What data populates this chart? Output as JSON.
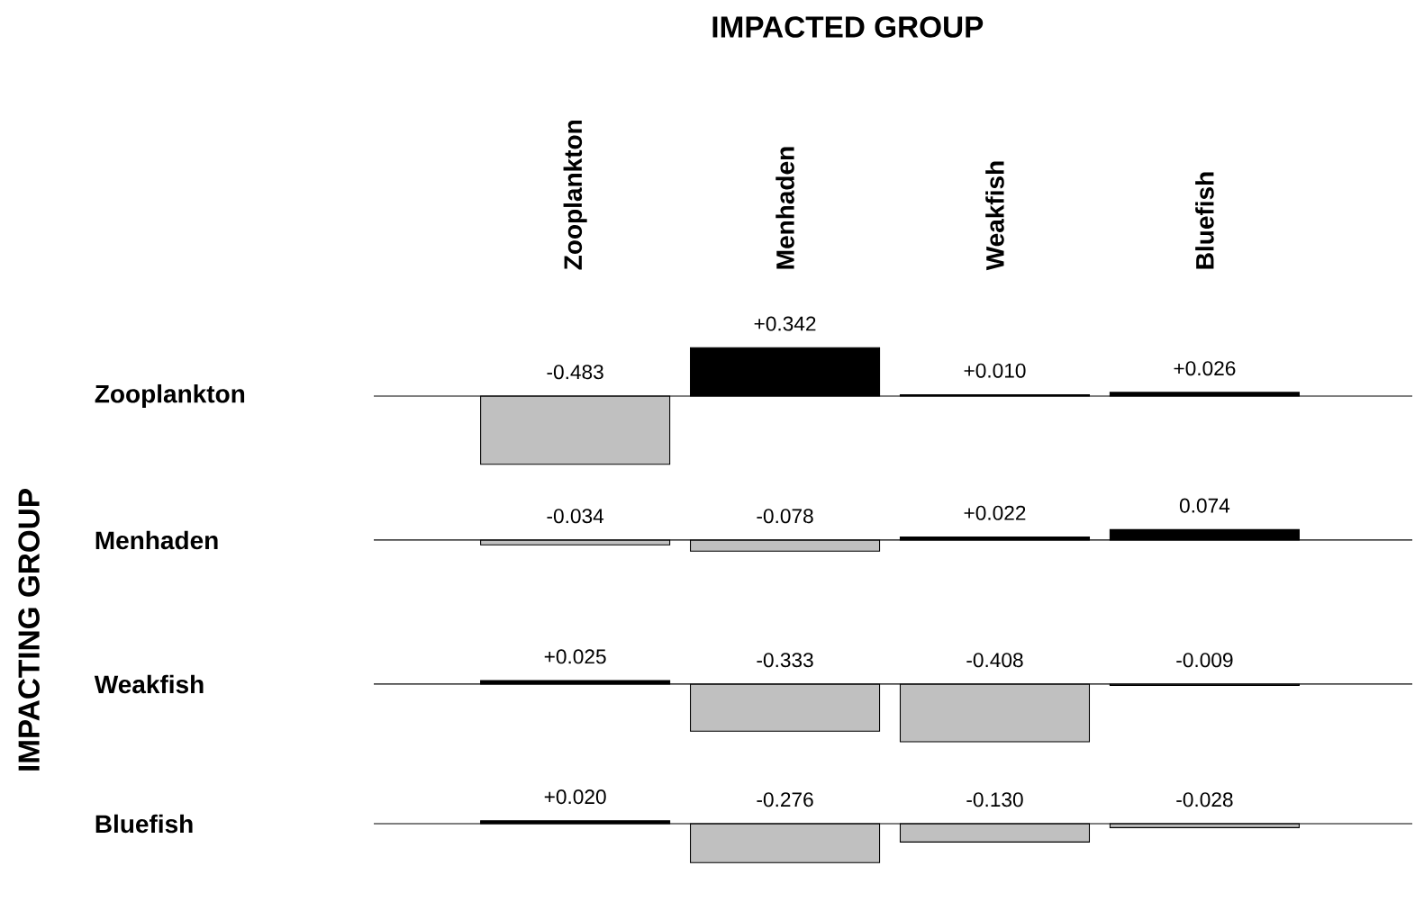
{
  "chart_data": [
    {
      "type": "bar",
      "title": "IMPACTED GROUP",
      "ylabel": "Zooplankton",
      "annotations": [
        "IMPACTING GROUP"
      ],
      "categories": [
        "Zooplankton",
        "Menhaden",
        "Weakfish",
        "Bluefish"
      ],
      "values": [
        -0.483,
        0.342,
        0.01,
        0.026
      ],
      "value_labels": [
        "-0.483",
        "+0.342",
        "+0.010",
        "+0.026"
      ],
      "colors": [
        "#c0c0c0",
        "#000000",
        "#000000",
        "#000000"
      ],
      "tick_labels": "x"
    },
    {
      "type": "bar",
      "ylabel": "Menhaden",
      "categories": [
        null,
        null,
        null,
        null
      ],
      "values": [
        -0.034,
        -0.078,
        0.022,
        0.074
      ],
      "value_labels": [
        "-0.034",
        "-0.078",
        "+0.022",
        "0.074"
      ],
      "colors": [
        "#c0c0c0",
        "#c0c0c0",
        "#000000",
        "#000000"
      ],
      "tick_labels": false
    },
    {
      "type": "bar",
      "ylabel": "Weakfish",
      "categories": [
        null,
        null,
        null,
        null
      ],
      "values": [
        0.025,
        -0.333,
        -0.408,
        -0.009
      ],
      "value_labels": [
        "+0.025",
        "-0.333",
        "-0.408",
        "-0.009"
      ],
      "colors": [
        "#000000",
        "#c0c0c0",
        "#c0c0c0",
        "#c0c0c0"
      ],
      "tick_labels": false
    },
    {
      "type": "bar",
      "ylabel": "Bluefish",
      "categories": [
        null,
        null,
        null,
        null
      ],
      "values": [
        0.02,
        -0.276,
        -0.13,
        -0.028
      ],
      "value_labels": [
        "+0.020",
        "-0.276",
        "-0.130",
        "-0.028"
      ],
      "colors": [
        "#000000",
        "#c0c0c0",
        "#c0c0c0",
        "#c0c0c0"
      ],
      "tick_labels": false
    }
  ]
}
